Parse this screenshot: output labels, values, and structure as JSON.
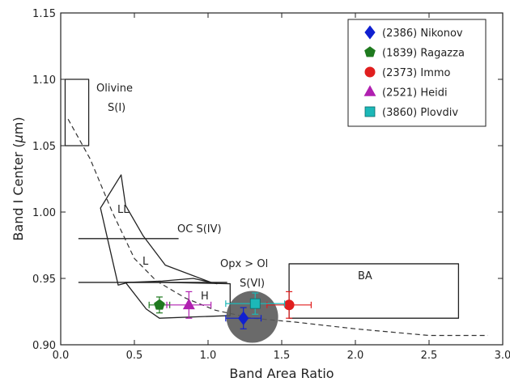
{
  "chart_data": {
    "type": "scatter",
    "title": "",
    "xlabel": "Band Area Ratio",
    "ylabel_main": "Band I Center (",
    "ylabel_mu": "μ",
    "ylabel_unit": "m)",
    "xlim": [
      0.0,
      3.0
    ],
    "ylim": [
      0.9,
      1.15
    ],
    "xticks": [
      0.0,
      0.5,
      1.0,
      1.5,
      2.0,
      2.5,
      3.0
    ],
    "xtick_labels": [
      "0.0",
      "0.5",
      "1.0",
      "1.5",
      "2.0",
      "2.5",
      "3.0"
    ],
    "yticks": [
      0.9,
      0.95,
      1.0,
      1.05,
      1.1,
      1.15
    ],
    "ytick_labels": [
      "0.90",
      "0.95",
      "1.00",
      "1.05",
      "1.10",
      "1.15"
    ],
    "grid": false,
    "legend_position": "top-right",
    "series": [
      {
        "name": "(2386) Nikonov",
        "marker": "diamond",
        "color": "#1020d0",
        "x": 1.24,
        "y": 0.92,
        "xerr": 0.12,
        "yerr": 0.008
      },
      {
        "name": "(1839) Ragazza",
        "marker": "pentagon",
        "color": "#1f7a1f",
        "x": 0.67,
        "y": 0.93,
        "xerr": 0.07,
        "yerr": 0.006
      },
      {
        "name": "(2373) Immo",
        "marker": "circle",
        "color": "#e01e1e",
        "x": 1.55,
        "y": 0.93,
        "xerr": 0.15,
        "yerr": 0.01
      },
      {
        "name": "(2521) Heidi",
        "marker": "triangle",
        "color": "#b020b0",
        "x": 0.87,
        "y": 0.93,
        "xerr": 0.15,
        "yerr": 0.01
      },
      {
        "name": "(3860) Plovdiv",
        "marker": "square",
        "color": "#1cb8b8",
        "x": 1.32,
        "y": 0.931,
        "xerr": 0.2,
        "yerr": 0.008
      }
    ],
    "regions": [
      {
        "name": "Olivine",
        "sub": "S(I)",
        "polygon": [
          [
            0.03,
            1.1
          ],
          [
            0.19,
            1.1
          ],
          [
            0.19,
            1.05
          ],
          [
            0.03,
            1.05
          ]
        ]
      },
      {
        "name": "BA",
        "polygon": [
          [
            1.55,
            0.961
          ],
          [
            2.7,
            0.961
          ],
          [
            2.7,
            0.92
          ],
          [
            1.55,
            0.92
          ]
        ]
      },
      {
        "name": "LL",
        "polygon": [
          [
            0.27,
            1.003
          ],
          [
            0.41,
            1.028
          ],
          [
            0.44,
            1.005
          ],
          [
            0.56,
            0.982
          ],
          [
            0.71,
            0.96
          ],
          [
            1.02,
            0.947
          ],
          [
            1.06,
            0.946
          ],
          [
            0.9,
            0.95
          ],
          [
            0.69,
            0.948
          ],
          [
            0.46,
            0.947
          ],
          [
            0.39,
            0.945
          ]
        ]
      },
      {
        "name": "H",
        "polygon": [
          [
            0.44,
            0.947
          ],
          [
            0.71,
            0.947
          ],
          [
            1.15,
            0.946
          ],
          [
            1.15,
            0.94
          ],
          [
            1.15,
            0.922
          ],
          [
            0.67,
            0.92
          ],
          [
            0.58,
            0.927
          ]
        ]
      },
      {
        "name": "L",
        "label_only": true
      }
    ],
    "lines": [
      {
        "name": "OC S(IV)",
        "x": [
          0.12,
          0.8
        ],
        "y": [
          0.98,
          0.98
        ]
      },
      {
        "name": "boundary",
        "x": [
          0.12,
          1.13
        ],
        "y": [
          0.947,
          0.947
        ]
      }
    ],
    "dashed_curve": {
      "x": [
        0.05,
        0.2,
        0.35,
        0.5,
        0.65,
        0.85,
        1.05,
        1.3,
        1.6,
        2.0,
        2.5,
        2.9
      ],
      "y": [
        1.07,
        1.04,
        1.0,
        0.965,
        0.948,
        0.935,
        0.926,
        0.92,
        0.917,
        0.912,
        0.907,
        0.907
      ]
    },
    "highlight_circle": {
      "x": 1.3,
      "y": 0.921,
      "label": "Opx > Ol",
      "sub": "S(VI)"
    },
    "annotations": {
      "olivine": "Olivine",
      "olivine_sub": "S(I)",
      "ll": "LL",
      "oc": "OC S(IV)",
      "l": "L",
      "opx": "Opx > Ol",
      "svi": "S(VI)",
      "h": "H",
      "ba": "BA"
    }
  }
}
